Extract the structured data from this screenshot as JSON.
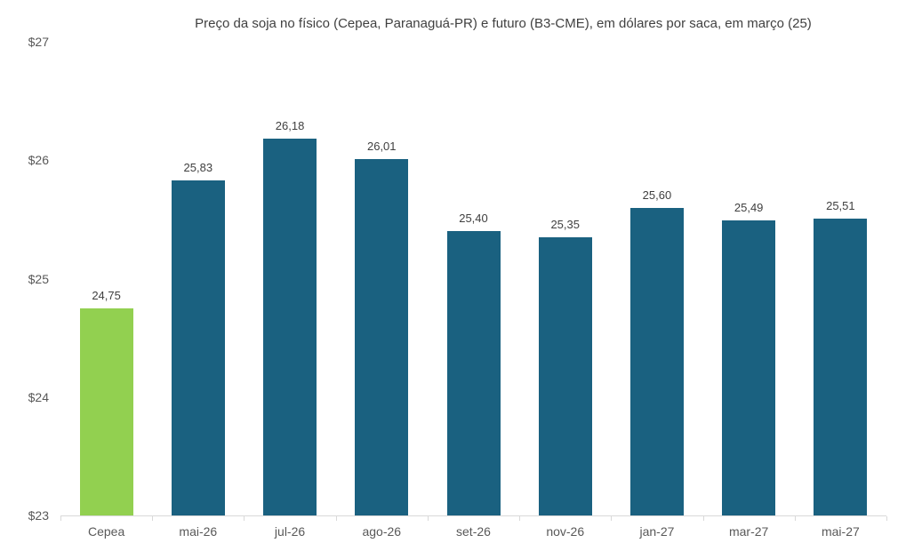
{
  "chart_data": {
    "type": "bar",
    "title": "Preço da soja no físico (Cepea, Paranaguá-PR) e futuro (B3-CME), em dólares por saca, em março (25)",
    "categories": [
      "Cepea",
      "mai-26",
      "jul-26",
      "ago-26",
      "set-26",
      "nov-26",
      "jan-27",
      "mar-27",
      "mai-27"
    ],
    "values": [
      24.75,
      25.83,
      26.18,
      26.01,
      25.4,
      25.35,
      25.6,
      25.49,
      25.51
    ],
    "value_labels": [
      "24,75",
      "25,83",
      "26,18",
      "26,01",
      "25,40",
      "25,35",
      "25,60",
      "25,49",
      "25,51"
    ],
    "xlabel": "",
    "ylabel": "",
    "ylim": [
      23,
      27
    ],
    "y_tick_values": [
      27,
      26,
      25,
      24,
      23
    ],
    "y_tick_labels": [
      "$27",
      "$26",
      "$25",
      "$24",
      "$23"
    ],
    "grid": false,
    "legend": false,
    "data_labels_visible": true,
    "colors": {
      "cepea_bar": "#92D050",
      "future_bars": "#1A6180",
      "axis_line": "#D9D9D9",
      "title_text": "#404040",
      "data_label_text": "#404040",
      "axis_label_text": "#595959",
      "background": "#FFFFFF"
    }
  }
}
